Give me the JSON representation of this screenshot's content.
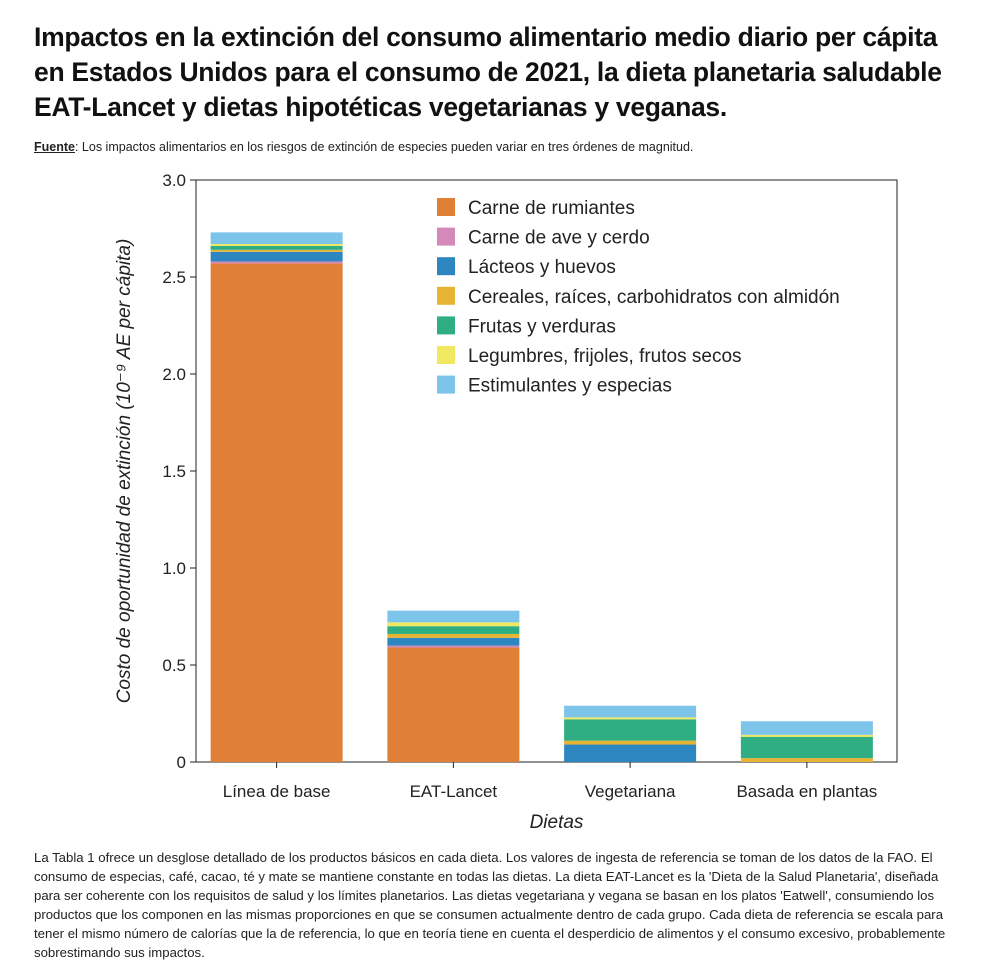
{
  "header": {
    "title": "Impactos en la extinción del consumo alimentario medio diario per cápita en Estados Unidos para el consumo de 2021, la dieta planetaria saludable EAT-Lancet y dietas hipotéticas vegetarianas y veganas.",
    "source_label": "Fuente",
    "source_text": ": Los impactos alimentarios en los riesgos de extinción de especies pueden variar en tres órdenes de magnitud."
  },
  "chart_data": {
    "type": "bar",
    "stacked": true,
    "xlabel": "Dietas",
    "ylabel": "Costo de oportunidad de extinción (10⁻⁹ AE per cápita)",
    "ylim": [
      0,
      3.0
    ],
    "yticks": [
      "0",
      "0.5",
      "1.0",
      "1.5",
      "2.0",
      "2.5",
      "3.0"
    ],
    "legend_position": "top-right",
    "categories": [
      "Línea de base",
      "EAT-Lancet",
      "Vegetariana",
      "Basada en plantas"
    ],
    "series": [
      {
        "name": "Carne de rumiantes",
        "color": "#e07f36",
        "values": [
          2.57,
          0.59,
          0.0,
          0.0
        ]
      },
      {
        "name": "Carne de ave y cerdo",
        "color": "#d48ab8",
        "values": [
          0.01,
          0.01,
          0.0,
          0.0
        ]
      },
      {
        "name": "Lácteos y huevos",
        "color": "#2e86c1",
        "values": [
          0.05,
          0.04,
          0.09,
          0.0
        ]
      },
      {
        "name": "Cereales, raíces, carbohidratos con almidón",
        "color": "#e6b333",
        "values": [
          0.01,
          0.02,
          0.02,
          0.02
        ]
      },
      {
        "name": "Frutas y verduras",
        "color": "#2fae84",
        "values": [
          0.02,
          0.04,
          0.11,
          0.11
        ]
      },
      {
        "name": "Legumbres, frijoles, frutos secos",
        "color": "#f0e860",
        "values": [
          0.01,
          0.02,
          0.01,
          0.01
        ]
      },
      {
        "name": "Estimulantes y especias",
        "color": "#7cc4ea",
        "values": [
          0.06,
          0.06,
          0.06,
          0.07
        ]
      }
    ]
  },
  "caption": "La Tabla 1 ofrece un desglose detallado de los productos básicos en cada dieta. Los valores de ingesta de referencia se toman de los datos de la FAO. El consumo de especias, café, cacao, té y mate se mantiene constante en todas las dietas. La dieta EAT-Lancet es la 'Dieta de la Salud Planetaria', diseñada para ser coherente con los requisitos de salud y los límites planetarios. Las dietas vegetariana y vegana se basan en los platos 'Eatwell', consumiendo los productos que los componen en las mismas proporciones en que se consumen actualmente dentro de cada grupo. Cada dieta de referencia se escala para tener el mismo número de calorías que la de referencia, lo que en teoría tiene en cuenta el desperdicio de alimentos y el consumo excesivo, probablemente sobrestimando sus impactos."
}
